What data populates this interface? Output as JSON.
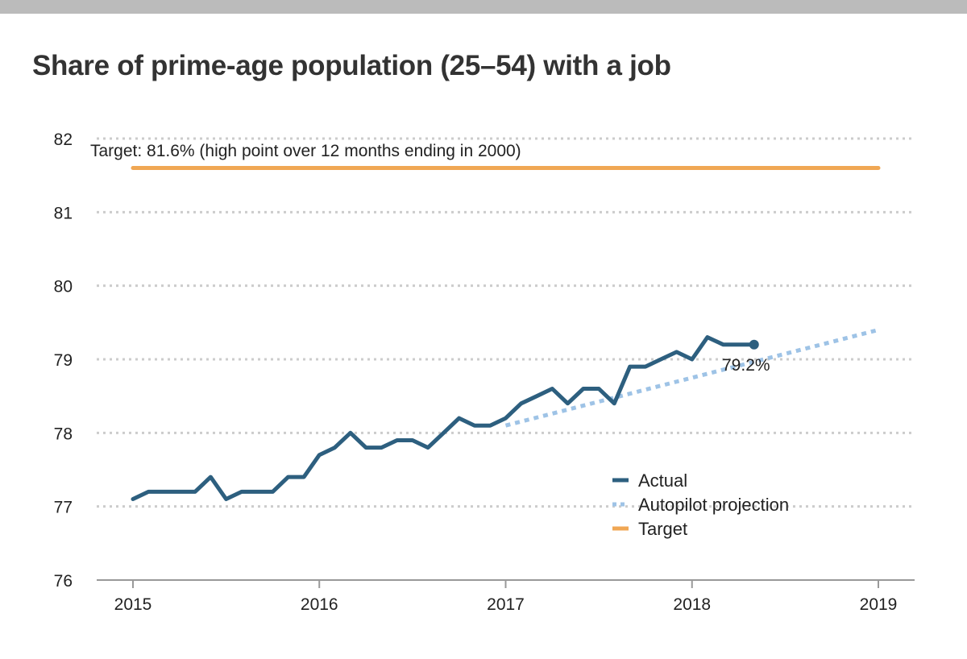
{
  "title": "Share of prime-age population (25–54) with a job",
  "colors": {
    "actual": "#2d5f7f",
    "projection": "#9ec3e6",
    "target": "#f0a754",
    "grid": "#cccccc",
    "axis": "#999999"
  },
  "chart_data": {
    "type": "line",
    "title": "Share of prime-age population (25–54) with a job",
    "xlabel": "",
    "ylabel": "",
    "xlim": [
      2015,
      2019
    ],
    "ylim": [
      76,
      82
    ],
    "x_ticks": [
      "2015",
      "2016",
      "2017",
      "2018",
      "2019"
    ],
    "y_ticks": [
      "76",
      "77",
      "78",
      "79",
      "80",
      "81",
      "82"
    ],
    "grid": "horizontal dotted",
    "legend_position": "bottom-right",
    "series": [
      {
        "name": "Actual",
        "style": "solid",
        "x": [
          2015.0,
          2015.083,
          2015.167,
          2015.25,
          2015.333,
          2015.417,
          2015.5,
          2015.583,
          2015.667,
          2015.75,
          2015.833,
          2015.917,
          2016.0,
          2016.083,
          2016.167,
          2016.25,
          2016.333,
          2016.417,
          2016.5,
          2016.583,
          2016.667,
          2016.75,
          2016.833,
          2016.917,
          2017.0,
          2017.083,
          2017.167,
          2017.25,
          2017.333,
          2017.417,
          2017.5,
          2017.583,
          2017.667,
          2017.75,
          2017.833,
          2017.917,
          2018.0,
          2018.083,
          2018.167,
          2018.25,
          2018.333
        ],
        "values": [
          77.1,
          77.2,
          77.2,
          77.2,
          77.2,
          77.4,
          77.1,
          77.2,
          77.2,
          77.2,
          77.4,
          77.4,
          77.7,
          77.8,
          78.0,
          77.8,
          77.8,
          77.9,
          77.9,
          77.8,
          78.0,
          78.2,
          78.1,
          78.1,
          78.2,
          78.4,
          78.5,
          78.6,
          78.4,
          78.6,
          78.6,
          78.4,
          78.9,
          78.9,
          79.0,
          79.1,
          79.0,
          79.3,
          79.2,
          79.2,
          79.2
        ]
      },
      {
        "name": "Autopilot projection",
        "style": "dotted",
        "x": [
          2017.0,
          2019.0
        ],
        "values": [
          78.1,
          79.4
        ]
      },
      {
        "name": "Target",
        "style": "solid",
        "x": [
          2015.0,
          2019.0
        ],
        "values": [
          81.6,
          81.6
        ]
      }
    ],
    "annotations": {
      "target": "Target: 81.6% (high point over 12 months ending in 2000)",
      "last_value": "79.2%"
    },
    "legend": [
      "Actual",
      "Autopilot projection",
      "Target"
    ]
  }
}
